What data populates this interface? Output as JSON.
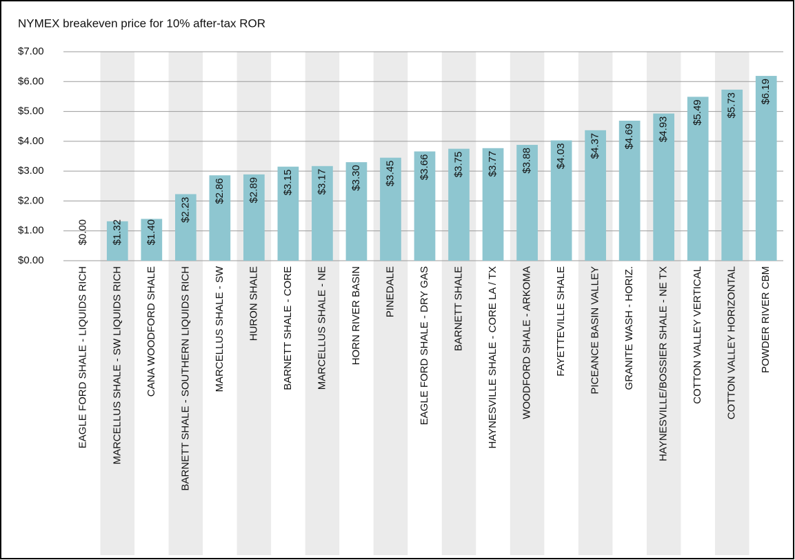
{
  "chart_data": {
    "type": "bar",
    "title": "NYMEX breakeven price for 10% after-tax ROR",
    "categories": [
      "EAGLE FORD SHALE - LIQUIDS RICH",
      "MARCELLUS SHALE - SW LIQUIDS RICH",
      "CANA WOODFORD SHALE",
      "BARNETT SHALE - SOUTHERN LIQUIDS RICH",
      "MARCELLUS SHALE - SW",
      "HURON SHALE",
      "BARNETT SHALE - CORE",
      "MARCELLUS SHALE - NE",
      "HORN RIVER BASIN",
      "PINEDALE",
      "EAGLE FORD SHALE - DRY GAS",
      "BARNETT SHALE",
      "HAYNESVILLE SHALE - CORE LA / TX",
      "WOODFORD SHALE - ARKOMA",
      "FAYETTEVILLE SHALE",
      "PICEANCE BASIN VALLEY",
      "GRANITE WASH - HORIZ.",
      "HAYNESVILLE/BOSSIER SHALE - NE TX",
      "COTTON VALLEY VERTICAL",
      "COTTON VALLEY HORIZONTAL",
      "POWDER RIVER CBM"
    ],
    "values": [
      0,
      1.32,
      1.4,
      2.23,
      2.86,
      2.89,
      3.15,
      3.17,
      3.3,
      3.45,
      3.66,
      3.75,
      3.77,
      3.88,
      4.03,
      4.37,
      4.69,
      4.93,
      5.49,
      5.73,
      6.19
    ],
    "value_labels": [
      "$0.00",
      "$1.32",
      "$1.40",
      "$2.23",
      "$2.86",
      "$2.89",
      "$3.15",
      "$3.17",
      "$3.30",
      "$3.45",
      "$3.66",
      "$3.75",
      "$3.77",
      "$3.88",
      "$4.03",
      "$4.37",
      "$4.69",
      "$4.93",
      "$5.49",
      "$5.73",
      "$6.19"
    ],
    "color": "#8ec6d0",
    "ylim": [
      0,
      7
    ],
    "yticks": [
      {
        "value": 0,
        "label": "$0.00"
      },
      {
        "value": 1,
        "label": "$1.00"
      },
      {
        "value": 2,
        "label": "$2.00"
      },
      {
        "value": 3,
        "label": "$3.00"
      },
      {
        "value": 4,
        "label": "$4.00"
      },
      {
        "value": 5,
        "label": "$5.00"
      },
      {
        "value": 6,
        "label": "$6.00"
      },
      {
        "value": 7,
        "label": "$7.00"
      }
    ],
    "grid": true
  }
}
